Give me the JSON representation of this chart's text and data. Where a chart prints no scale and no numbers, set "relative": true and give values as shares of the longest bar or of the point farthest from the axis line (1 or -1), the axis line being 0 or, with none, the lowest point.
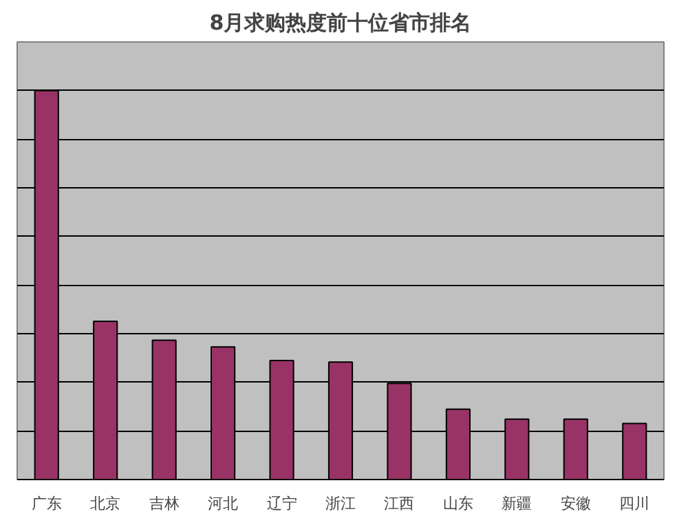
{
  "chart_data": {
    "type": "bar",
    "title": "8月求购热度前十位省市排名",
    "relative": true,
    "grid": "y",
    "color": "#993366",
    "categories": [
      "广东",
      "北京",
      "吉林",
      "河北",
      "辽宁",
      "浙江",
      "江西",
      "山东",
      "新疆",
      "安徽",
      "四川"
    ],
    "values": [
      1,
      0.407,
      0.358,
      0.341,
      0.306,
      0.302,
      0.247,
      0.181,
      0.155,
      0.155,
      0.144
    ]
  }
}
